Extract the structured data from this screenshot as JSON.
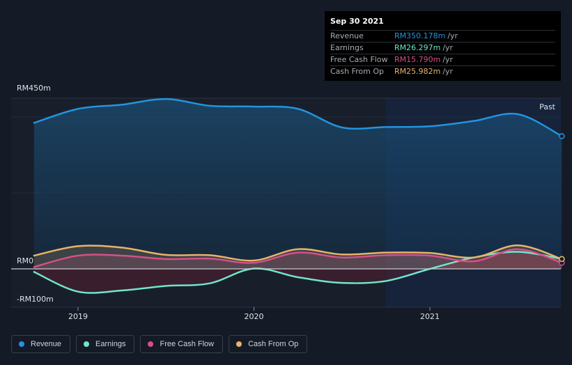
{
  "colors": {
    "revenue": "#2394df",
    "earnings": "#6fe6c9",
    "fcf": "#d5508a",
    "cfo": "#e8b36a",
    "background": "#151b26"
  },
  "tooltip": {
    "date": "Sep 30 2021",
    "rows": [
      {
        "label": "Revenue",
        "value": "RM350.178m",
        "unit": "/yr",
        "color": "#2394df"
      },
      {
        "label": "Earnings",
        "value": "RM26.297m",
        "unit": "/yr",
        "color": "#6fe6c9"
      },
      {
        "label": "Free Cash Flow",
        "value": "RM15.790m",
        "unit": "/yr",
        "color": "#d5508a"
      },
      {
        "label": "Cash From Op",
        "value": "RM25.982m",
        "unit": "/yr",
        "color": "#e8b36a"
      }
    ]
  },
  "chart_data": {
    "type": "area",
    "y_tick_labels": [
      "RM450m",
      "RM0",
      "-RM100m"
    ],
    "ylim": [
      -100,
      450
    ],
    "x_tick_labels": [
      "2019",
      "2020",
      "2021"
    ],
    "xlim": [
      2018.75,
      2021.75
    ],
    "past_label": "Past",
    "past_start": 2020.75,
    "series": [
      {
        "name": "Revenue",
        "key": "revenue",
        "x": [
          2018.75,
          2019.0,
          2019.25,
          2019.5,
          2019.75,
          2020.0,
          2020.25,
          2020.5,
          2020.75,
          2021.0,
          2021.25,
          2021.5,
          2021.75
        ],
        "y": [
          385,
          422,
          433,
          448,
          430,
          428,
          422,
          373,
          374,
          376,
          390,
          408,
          350
        ]
      },
      {
        "name": "Earnings",
        "key": "earnings",
        "x": [
          2018.75,
          2019.0,
          2019.25,
          2019.5,
          2019.75,
          2020.0,
          2020.25,
          2020.5,
          2020.75,
          2021.0,
          2021.25,
          2021.5,
          2021.75
        ],
        "y": [
          -8,
          -60,
          -57,
          -45,
          -38,
          1,
          -22,
          -37,
          -32,
          0,
          30,
          45,
          26
        ]
      },
      {
        "name": "Free Cash Flow",
        "key": "fcf",
        "x": [
          2018.75,
          2019.0,
          2019.25,
          2019.5,
          2019.75,
          2020.0,
          2020.25,
          2020.5,
          2020.75,
          2021.0,
          2021.25,
          2021.5,
          2021.75
        ],
        "y": [
          5,
          35,
          35,
          26,
          27,
          16,
          43,
          30,
          36,
          35,
          20,
          52,
          16
        ]
      },
      {
        "name": "Cash From Op",
        "key": "cfo",
        "x": [
          2018.75,
          2019.0,
          2019.25,
          2019.5,
          2019.75,
          2020.0,
          2020.25,
          2020.5,
          2020.75,
          2021.0,
          2021.25,
          2021.5,
          2021.75
        ],
        "y": [
          35,
          60,
          56,
          37,
          36,
          22,
          52,
          38,
          43,
          42,
          30,
          62,
          26
        ]
      }
    ]
  },
  "legend": [
    {
      "label": "Revenue",
      "color": "#2394df"
    },
    {
      "label": "Earnings",
      "color": "#6fe6c9"
    },
    {
      "label": "Free Cash Flow",
      "color": "#d5508a"
    },
    {
      "label": "Cash From Op",
      "color": "#e8b36a"
    }
  ]
}
